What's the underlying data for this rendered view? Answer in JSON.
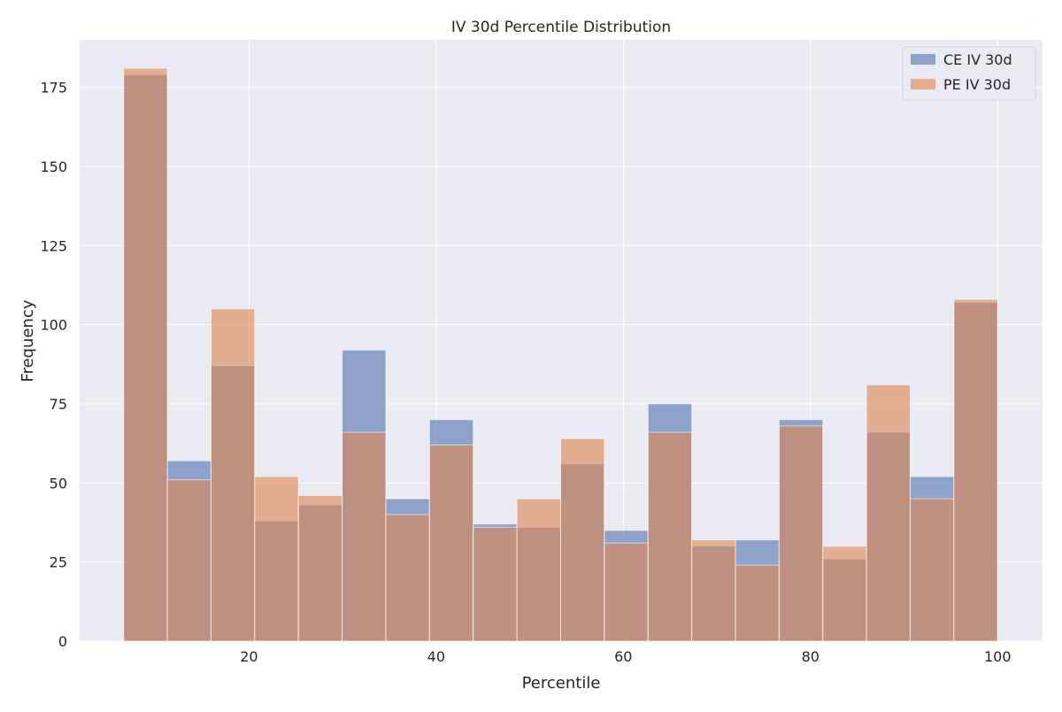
{
  "chart_data": {
    "type": "bar",
    "title": "IV 30d Percentile Distribution",
    "xlabel": "Percentile",
    "ylabel": "Frequency",
    "xlim": [
      1.9,
      104.8
    ],
    "ylim": [
      0,
      190
    ],
    "xticks": [
      20,
      40,
      60,
      80,
      100
    ],
    "yticks": [
      0,
      25,
      50,
      75,
      100,
      125,
      150,
      175
    ],
    "grid": true,
    "legend_placement": "top-right",
    "bin_edges": [
      6.6,
      11.27,
      15.94,
      20.61,
      25.28,
      29.95,
      34.62,
      39.29,
      43.96,
      48.63,
      53.3,
      57.97,
      62.64,
      67.31,
      71.98,
      76.65,
      81.32,
      85.99,
      90.66,
      95.33,
      100.0
    ],
    "series": [
      {
        "name": "CE IV 30d",
        "color": "#4c72b0",
        "alpha": 0.6,
        "values": [
          179,
          57,
          87,
          38,
          43,
          92,
          45,
          70,
          37,
          36,
          56,
          35,
          75,
          30,
          32,
          70,
          26,
          66,
          52,
          107
        ]
      },
      {
        "name": "PE IV 30d",
        "color": "#dd8452",
        "alpha": 0.6,
        "values": [
          181,
          51,
          105,
          52,
          46,
          66,
          40,
          62,
          36,
          45,
          64,
          31,
          66,
          32,
          24,
          68,
          30,
          81,
          45,
          108
        ]
      }
    ],
    "background": "#eaeaf2"
  }
}
